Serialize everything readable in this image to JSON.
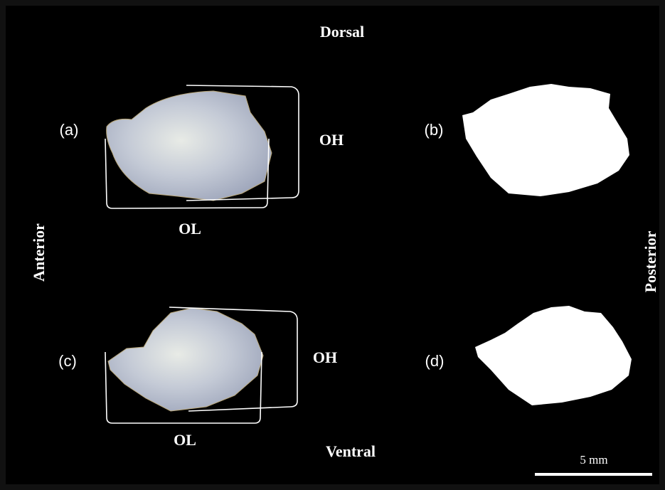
{
  "orientation": {
    "top": "Dorsal",
    "bottom": "Ventral",
    "left": "Anterior",
    "right": "Posterior"
  },
  "panels": [
    {
      "label": "(a)",
      "height_label": "OH",
      "length_label": "OL"
    },
    {
      "label": "(b)"
    },
    {
      "label": "(c)",
      "height_label": "OH",
      "length_label": "OL"
    },
    {
      "label": "(d)"
    }
  ],
  "scale_bar": {
    "label": "5 mm"
  }
}
